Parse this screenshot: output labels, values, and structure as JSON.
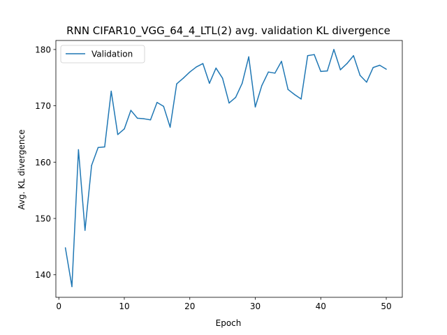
{
  "chart_data": {
    "type": "line",
    "title": "RNN CIFAR10_VGG_64_4_LTL(2) avg. validation KL divergence",
    "xlabel": "Epoch",
    "ylabel": "Avg. KL divergence",
    "xlim": [
      -0.45,
      52.45
    ],
    "ylim": [
      136.0,
      181.6
    ],
    "xticks": [
      0,
      10,
      20,
      30,
      40,
      50
    ],
    "yticks": [
      140,
      150,
      160,
      170,
      180
    ],
    "grid": false,
    "legend_position": "top-left",
    "series": [
      {
        "name": "Validation",
        "color": "#1f77b4",
        "x": [
          1,
          2,
          3,
          4,
          5,
          6,
          7,
          8,
          9,
          10,
          11,
          12,
          13,
          14,
          15,
          16,
          17,
          18,
          19,
          20,
          21,
          22,
          23,
          24,
          25,
          26,
          27,
          28,
          29,
          30,
          31,
          32,
          33,
          34,
          35,
          36,
          37,
          38,
          39,
          40,
          41,
          42,
          43,
          44,
          45,
          46,
          47,
          48,
          49,
          50
        ],
        "values": [
          144.8,
          137.9,
          162.2,
          147.9,
          159.4,
          162.6,
          162.7,
          172.6,
          164.9,
          165.9,
          169.2,
          167.8,
          167.7,
          167.5,
          170.6,
          169.9,
          166.2,
          173.9,
          174.9,
          176.0,
          176.9,
          177.5,
          174.0,
          176.7,
          174.9,
          170.5,
          171.5,
          174.0,
          178.7,
          169.8,
          173.6,
          176.0,
          175.8,
          177.9,
          172.9,
          172.0,
          171.2,
          178.9,
          179.1,
          176.1,
          176.2,
          180.0,
          176.4,
          177.5,
          178.9,
          175.4,
          174.2,
          176.8,
          177.2,
          176.5
        ]
      }
    ]
  }
}
